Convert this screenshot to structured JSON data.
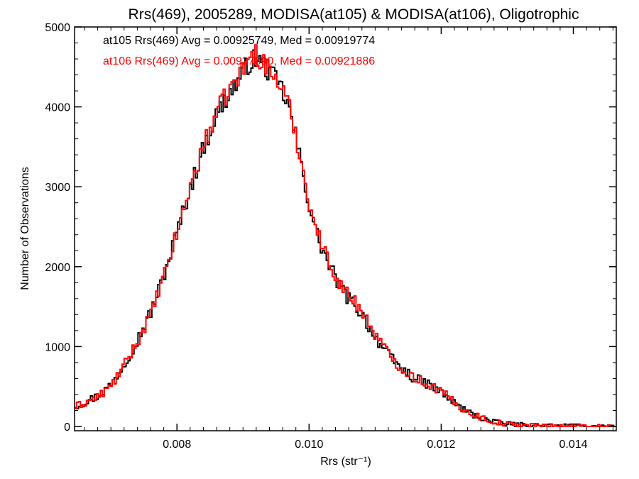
{
  "chart_data": {
    "type": "step-histogram",
    "title": "Rrs(469), 2005289, MODISA(at105) & MODISA(at106), Oligotrophic",
    "xlabel": "Rrs (str⁻¹)",
    "ylabel": "Number of Observations",
    "xlim": [
      0.00645,
      0.01465
    ],
    "ylim": [
      0,
      5000
    ],
    "xticks": [
      {
        "value": 0.008,
        "label": "0.008"
      },
      {
        "value": 0.01,
        "label": "0.010"
      },
      {
        "value": 0.012,
        "label": "0.012"
      },
      {
        "value": 0.014,
        "label": "0.014"
      }
    ],
    "yticks": [
      {
        "value": 0,
        "label": "0"
      },
      {
        "value": 1000,
        "label": "1000"
      },
      {
        "value": 2000,
        "label": "2000"
      },
      {
        "value": 3000,
        "label": "3000"
      },
      {
        "value": 4000,
        "label": "4000"
      },
      {
        "value": 5000,
        "label": "5000"
      }
    ],
    "grid": false,
    "legend_position": "top-left",
    "series": [
      {
        "name": "at105",
        "legend": "at105 Rrs(469) Avg = 0.00925749, Med = 0.00919774",
        "color": "#000000",
        "x": [
          0.00645,
          0.0068,
          0.007,
          0.0072,
          0.0074,
          0.0076,
          0.0078,
          0.008,
          0.0082,
          0.0084,
          0.0086,
          0.0088,
          0.009,
          0.0091,
          0.0092,
          0.0093,
          0.0094,
          0.0095,
          0.0096,
          0.0097,
          0.0098,
          0.0099,
          0.01,
          0.0101,
          0.0102,
          0.0103,
          0.0104,
          0.0105,
          0.0106,
          0.0107,
          0.0108,
          0.011,
          0.0112,
          0.0114,
          0.0116,
          0.0118,
          0.012,
          0.0122,
          0.0124,
          0.0126,
          0.0128,
          0.013,
          0.0132,
          0.0134,
          0.0136,
          0.0138,
          0.014,
          0.0142,
          0.0144,
          0.01465
        ],
        "y": [
          250,
          380,
          520,
          780,
          1080,
          1420,
          1880,
          2430,
          2980,
          3480,
          3900,
          4180,
          4420,
          4560,
          4600,
          4530,
          4430,
          4330,
          4200,
          3970,
          3620,
          3200,
          2780,
          2450,
          2220,
          2020,
          1860,
          1700,
          1600,
          1520,
          1400,
          1130,
          890,
          720,
          600,
          530,
          430,
          290,
          180,
          110,
          50,
          30,
          18,
          12,
          8,
          5,
          3,
          2,
          1,
          0
        ]
      },
      {
        "name": "at106",
        "legend": "at106 Rrs(469) Avg = 0.00927890, Med = 0.00921886",
        "color": "#ff0000",
        "x": [
          0.00645,
          0.0068,
          0.007,
          0.0072,
          0.0074,
          0.0076,
          0.0078,
          0.008,
          0.0082,
          0.0084,
          0.0086,
          0.0088,
          0.009,
          0.0091,
          0.0092,
          0.0093,
          0.0094,
          0.0095,
          0.0096,
          0.0097,
          0.0098,
          0.0099,
          0.01,
          0.0101,
          0.0102,
          0.0103,
          0.0104,
          0.0105,
          0.0106,
          0.0107,
          0.0108,
          0.011,
          0.0112,
          0.0114,
          0.0116,
          0.0118,
          0.012,
          0.0122,
          0.0124,
          0.0126,
          0.0128,
          0.013,
          0.0132,
          0.0134,
          0.0136,
          0.0138,
          0.014,
          0.0142,
          0.0144,
          0.01465
        ],
        "y": [
          240,
          370,
          500,
          760,
          1060,
          1400,
          1860,
          2420,
          2990,
          3500,
          3930,
          4220,
          4460,
          4620,
          4660,
          4570,
          4460,
          4350,
          4220,
          3990,
          3650,
          3240,
          2820,
          2500,
          2260,
          2060,
          1900,
          1740,
          1640,
          1560,
          1440,
          1160,
          910,
          730,
          610,
          535,
          440,
          300,
          185,
          115,
          55,
          32,
          20,
          13,
          9,
          6,
          4,
          2,
          1,
          0
        ]
      }
    ]
  }
}
